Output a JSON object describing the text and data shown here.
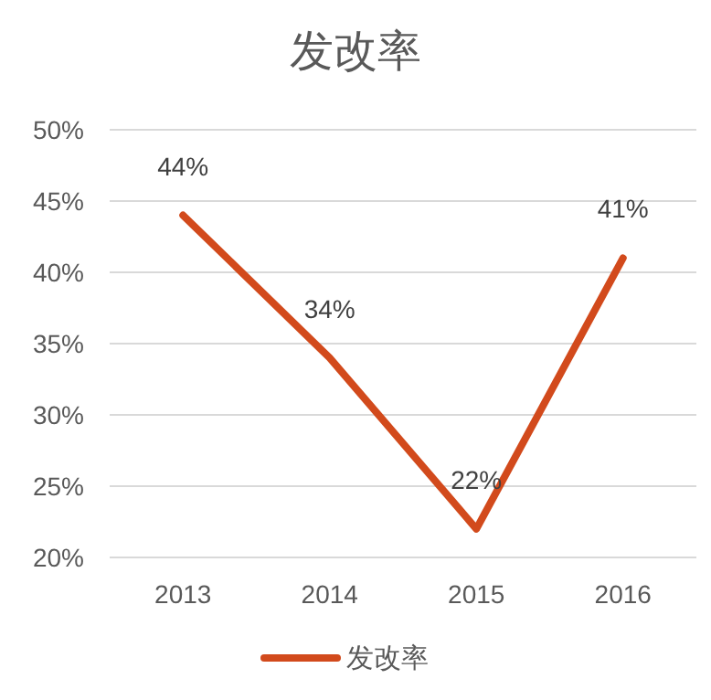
{
  "chart_data": {
    "type": "line",
    "title": "发改率",
    "categories": [
      "2013",
      "2014",
      "2015",
      "2016"
    ],
    "series": [
      {
        "name": "发改率",
        "color": "#d24a1c",
        "values": [
          44,
          34,
          22,
          41
        ],
        "value_labels": [
          "44%",
          "34%",
          "22%",
          "41%"
        ]
      }
    ],
    "ylim": [
      20,
      50
    ],
    "yticks": [
      {
        "value": 20,
        "label": "20%"
      },
      {
        "value": 25,
        "label": "25%"
      },
      {
        "value": 30,
        "label": "30%"
      },
      {
        "value": 35,
        "label": "35%"
      },
      {
        "value": 40,
        "label": "40%"
      },
      {
        "value": 45,
        "label": "45%"
      },
      {
        "value": 50,
        "label": "50%"
      }
    ],
    "grid": "y",
    "legend": "bottom"
  }
}
